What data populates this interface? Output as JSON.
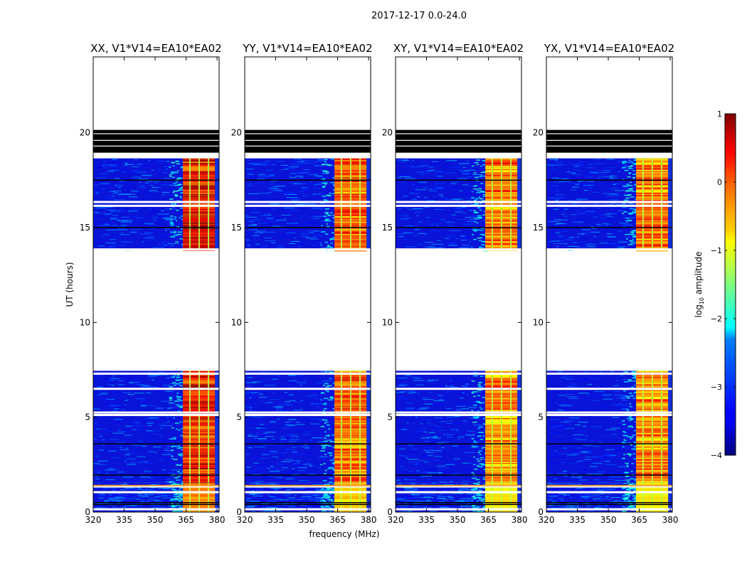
{
  "figure": {
    "suptitle": "2017-12-17 0.0-24.0",
    "xlabel": "frequency (MHz)",
    "ylabel": "UT (hours)"
  },
  "chart_data": {
    "type": "heatmap",
    "xlim": [
      320,
      381
    ],
    "ylim": [
      0,
      24
    ],
    "x_ticks": [
      320,
      335,
      350,
      365,
      380
    ],
    "y_ticks": [
      0,
      5,
      10,
      15,
      20
    ],
    "panels": [
      {
        "title": "XX, V1*V14=EA10*EA02"
      },
      {
        "title": "YY, V1*V14=EA10*EA02"
      },
      {
        "title": "XY, V1*V14=EA10*EA02"
      },
      {
        "title": "YX, V1*V14=EA10*EA02"
      }
    ],
    "data_blocks_ut": [
      [
        0,
        1.55
      ],
      [
        1.55,
        7.45
      ],
      [
        13.8,
        18.65
      ]
    ],
    "flagged_black_ut": [
      18.95,
      20.15
    ],
    "strong_band_mhz": [
      363.5,
      379
    ],
    "colorbar": {
      "label": "log10 amplitude",
      "label_base": "log",
      "label_sub": "10",
      "label_rest": " amplitude",
      "range": [
        -4,
        1
      ],
      "ticks": [
        "1",
        "0",
        "−1",
        "−2",
        "−3",
        "−4"
      ],
      "colormap": "jet"
    }
  }
}
